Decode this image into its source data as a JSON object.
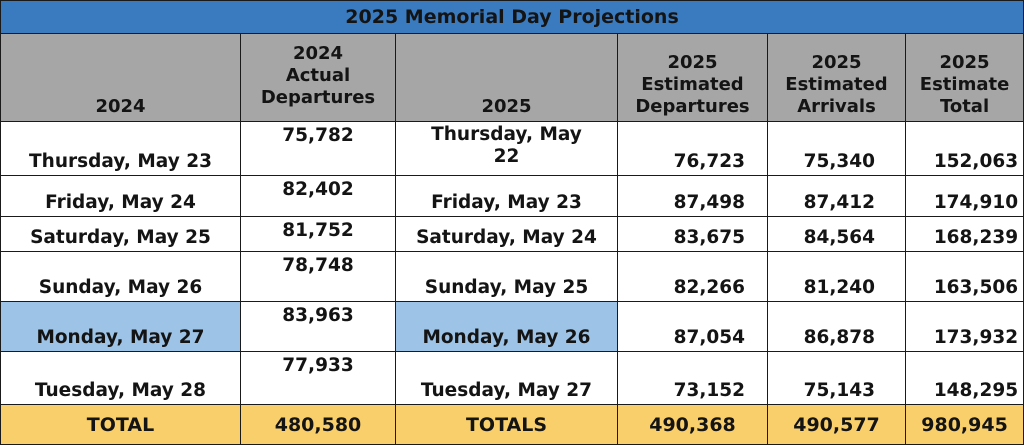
{
  "title": "2025 Memorial Day Projections",
  "headers": {
    "col1": "2024",
    "col2_line1": "2024",
    "col2_line2": "Actual",
    "col2_line3": "Departures",
    "col3": "2025",
    "col4_line1": "2025",
    "col4_line2": "Estimated",
    "col4_line3": "Departures",
    "col5_line1": "2025",
    "col5_line2": "Estimated",
    "col5_line3": "Arrivals",
    "col6_line1": "2025",
    "col6_line2": "Estimate",
    "col6_line3": "Total"
  },
  "rows": [
    {
      "date_2024": "Thursday, May 23",
      "actual_2024": "75,782",
      "date_2025_line1": "Thursday, May",
      "date_2025_line2": "22",
      "departures_2025": "76,723",
      "arrivals_2025": "75,340",
      "total_2025": "152,063"
    },
    {
      "date_2024": "Friday, May 24",
      "actual_2024": "82,402",
      "date_2025": "Friday, May 23",
      "departures_2025": "87,498",
      "arrivals_2025": "87,412",
      "total_2025": "174,910"
    },
    {
      "date_2024": "Saturday, May 25",
      "actual_2024": "81,752",
      "date_2025": "Saturday, May 24",
      "departures_2025": "83,675",
      "arrivals_2025": "84,564",
      "total_2025": "168,239"
    },
    {
      "date_2024": "Sunday, May 26",
      "actual_2024": "78,748",
      "date_2025": "Sunday, May 25",
      "departures_2025": "82,266",
      "arrivals_2025": "81,240",
      "total_2025": "163,506"
    },
    {
      "date_2024": "Monday, May 27",
      "actual_2024": "83,963",
      "date_2025": "Monday, May 26",
      "departures_2025": "87,054",
      "arrivals_2025": "86,878",
      "total_2025": "173,932"
    },
    {
      "date_2024": "Tuesday, May 28",
      "actual_2024": "77,933",
      "date_2025": "Tuesday, May 27",
      "departures_2025": "73,152",
      "arrivals_2025": "75,143",
      "total_2025": "148,295"
    }
  ],
  "totals": {
    "label_2024": "TOTAL",
    "actual_2024": "480,580",
    "label_2025": "TOTALS",
    "departures_2025": "490,368",
    "arrivals_2025": "490,577",
    "total_2025": "980,945"
  },
  "colors": {
    "title_bg": "#3a7bbf",
    "header_bg": "#a6a6a6",
    "highlight_bg": "#9dc3e6",
    "total_bg": "#f9cf6b"
  }
}
